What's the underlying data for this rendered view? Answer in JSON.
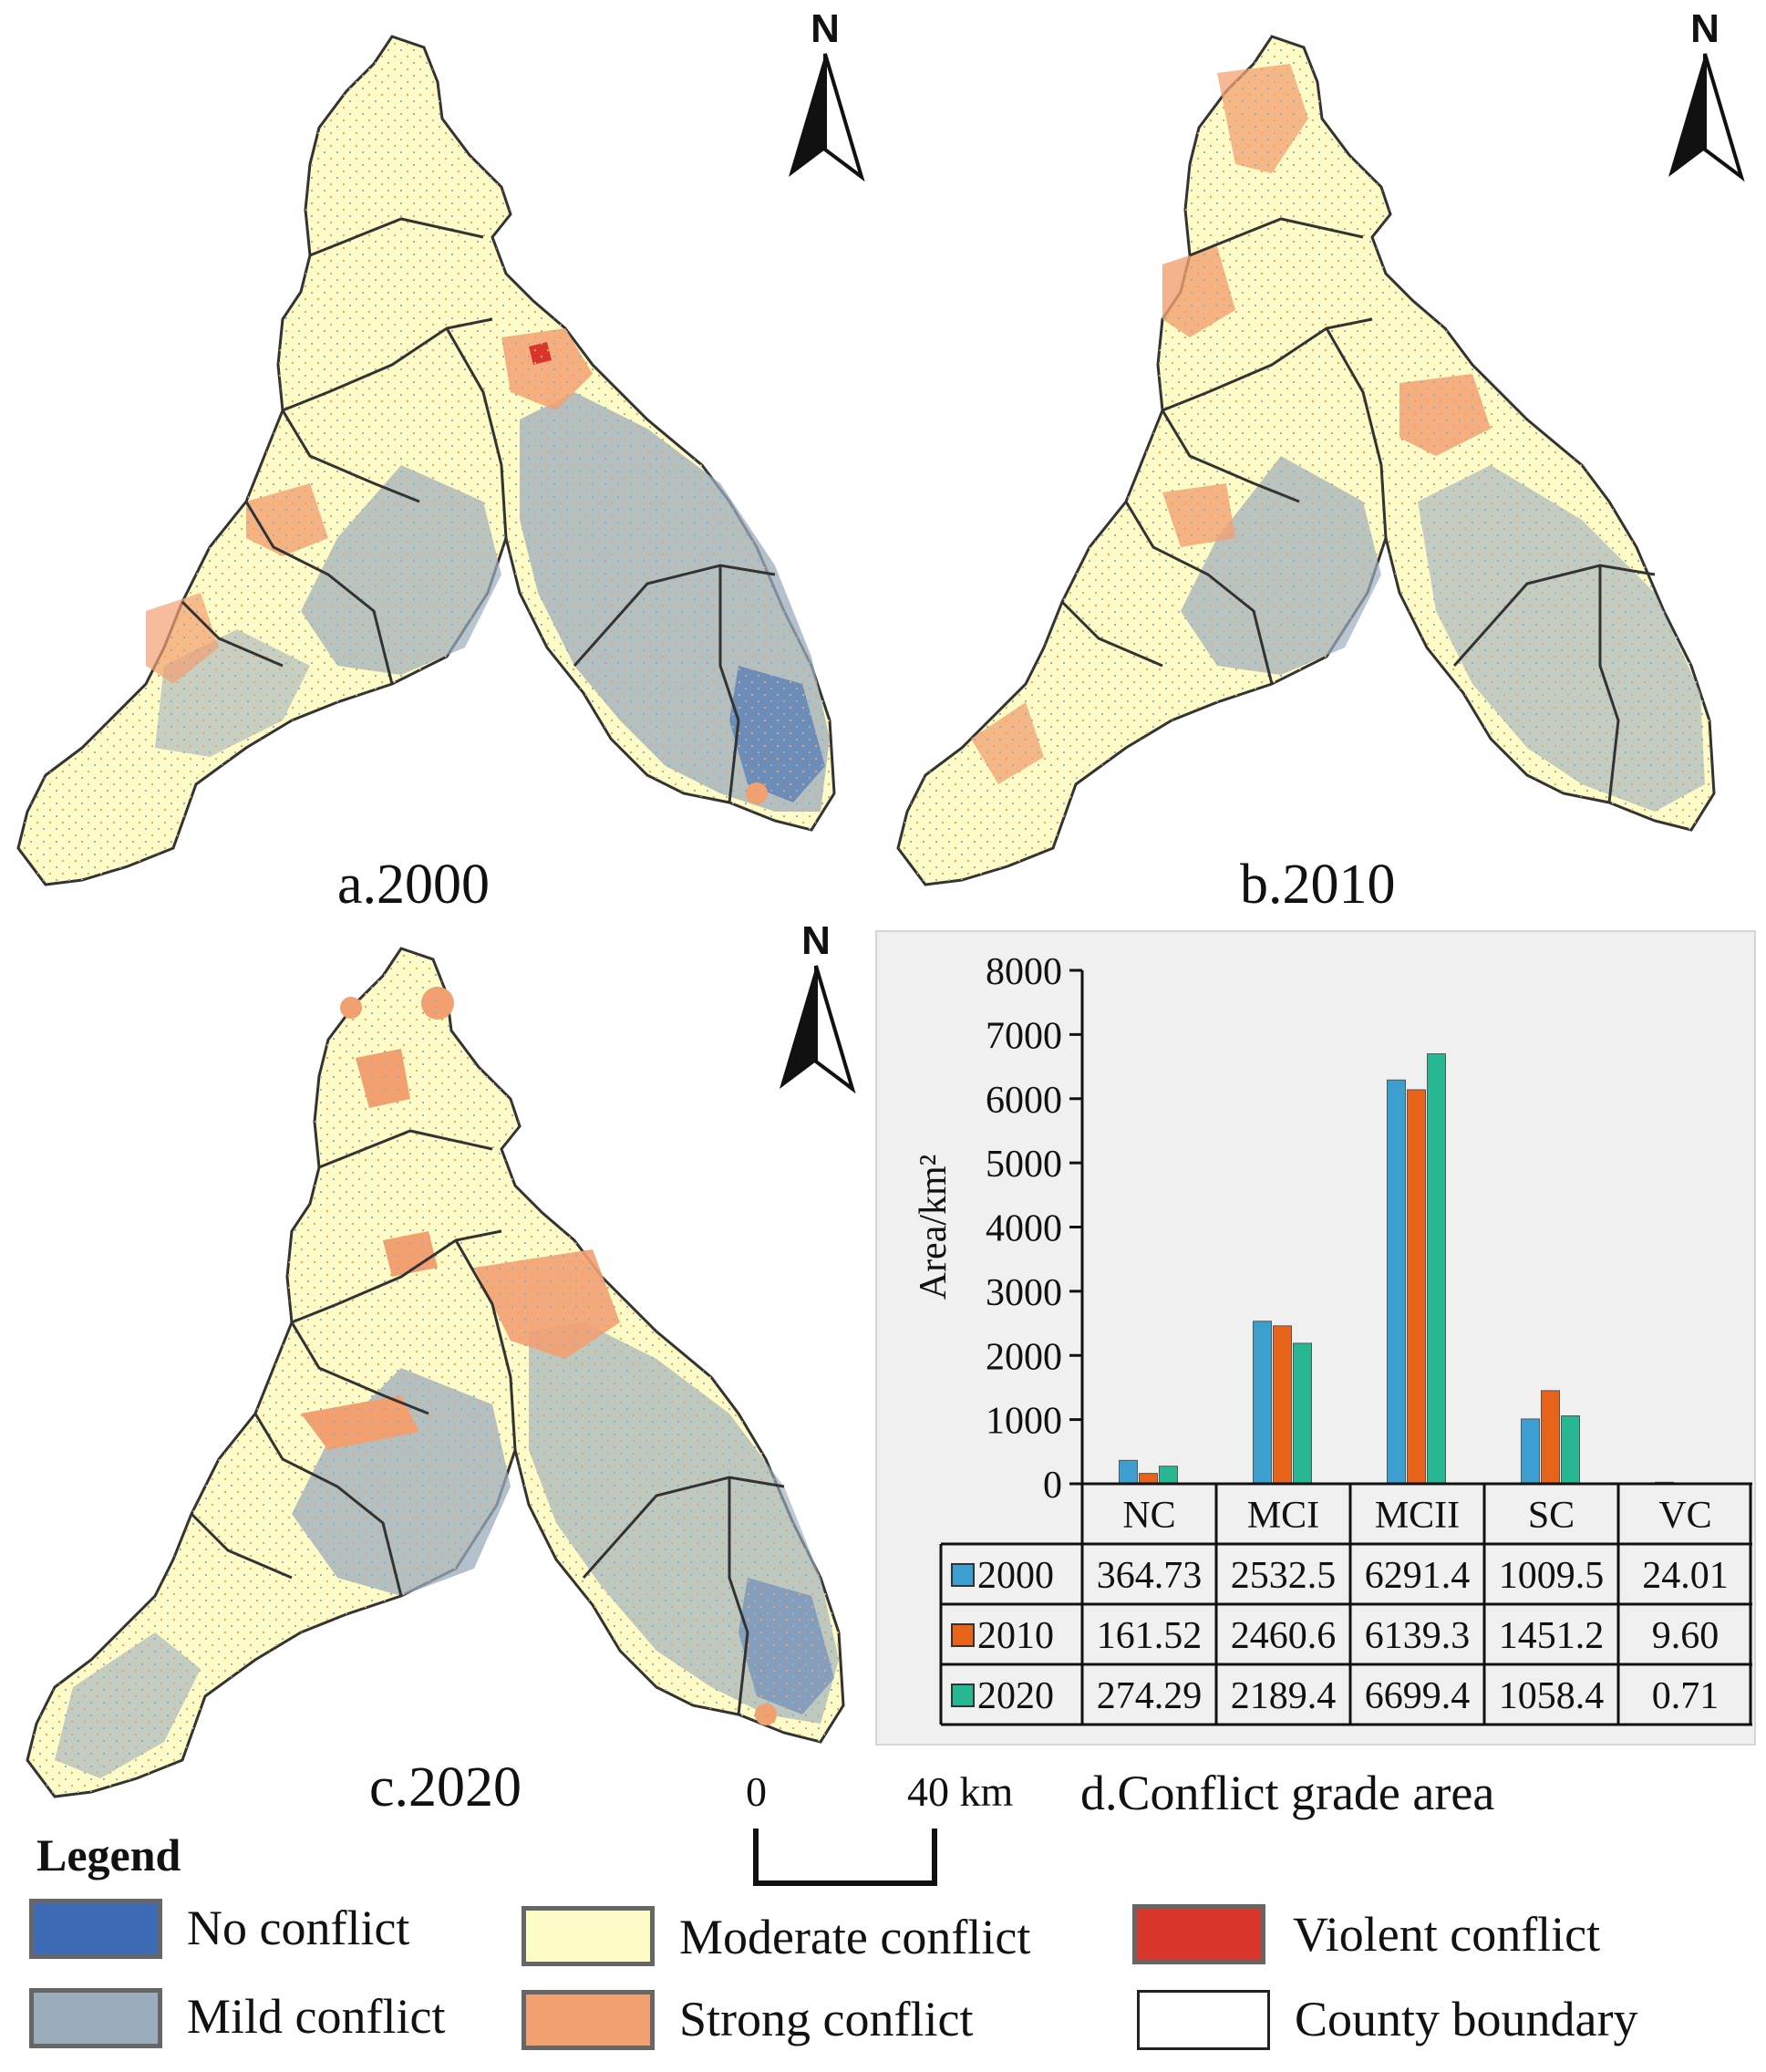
{
  "north_label": "N",
  "maps": [
    {
      "id": "a",
      "label": "a.2000"
    },
    {
      "id": "b",
      "label": "b.2010"
    },
    {
      "id": "c",
      "label": "c.2020"
    }
  ],
  "chart_caption": "d.Conflict grade area",
  "scale_bar": {
    "start": "0",
    "end": "40 km"
  },
  "legend": {
    "title": "Legend",
    "items": [
      {
        "label": "No conflict",
        "color": "#3d6ab5"
      },
      {
        "label": "Mild conflict",
        "color": "#9bacbc"
      },
      {
        "label": "Moderate conflict",
        "color": "#fdfcc6"
      },
      {
        "label": "Strong conflict",
        "color": "#f3a071"
      },
      {
        "label": "Violent conflict",
        "color": "#d9352a"
      },
      {
        "label": "County boundary",
        "color": "#ffffff"
      }
    ]
  },
  "colors": {
    "moderate": "#fdfcc6",
    "mild": "#9bacbc",
    "none": "#3d6ab5",
    "strong": "#f3a071",
    "violent": "#d9352a",
    "boundary": "#333333"
  },
  "chart_data": {
    "type": "bar",
    "ylabel": "Area/km²",
    "ylim": [
      0,
      8000
    ],
    "yticks": [
      "0",
      "1000",
      "2000",
      "3000",
      "4000",
      "5000",
      "6000",
      "7000",
      "8000"
    ],
    "categories": [
      "NC",
      "MCI",
      "MCII",
      "SC",
      "VC"
    ],
    "series": [
      {
        "name": "2000",
        "color": "#3c9fd0",
        "values": [
          364.73,
          2532.5,
          6291.4,
          1009.5,
          24.01
        ],
        "labels": [
          "364.73",
          "2532.5",
          "6291.4",
          "1009.5",
          "24.01"
        ]
      },
      {
        "name": "2010",
        "color": "#e8631a",
        "values": [
          161.52,
          2460.6,
          6139.3,
          1451.2,
          9.6
        ],
        "labels": [
          "161.52",
          "2460.6",
          "6139.3",
          "1451.2",
          "9.60"
        ]
      },
      {
        "name": "2020",
        "color": "#27b792",
        "values": [
          274.29,
          2189.4,
          6699.4,
          1058.4,
          0.71
        ],
        "labels": [
          "274.29",
          "2189.4",
          "6699.4",
          "1058.4",
          "0.71"
        ]
      }
    ]
  }
}
